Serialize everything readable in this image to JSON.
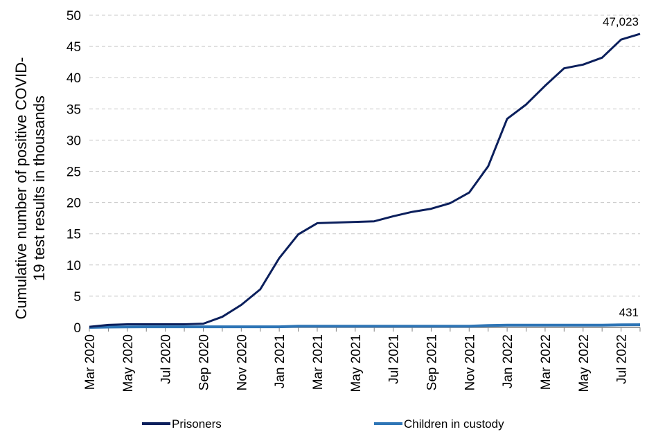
{
  "chart_data": {
    "type": "line",
    "ylabel_lines": [
      "Cumulative number of positive  COVID-",
      "19 test results in thousands"
    ],
    "ylim": [
      0,
      50
    ],
    "yticks": [
      0,
      5,
      10,
      15,
      20,
      25,
      30,
      35,
      40,
      45,
      50
    ],
    "grid": "horizontal dashed",
    "legend_position": "bottom",
    "x_tick_labels": [
      "Mar 2020",
      "May 2020",
      "Jul 2020",
      "Sep 2020",
      "Nov 2020",
      "Jan 2021",
      "Mar 2021",
      "May 2021",
      "Jul 2021",
      "Sep 2021",
      "Nov 2021",
      "Jan 2022",
      "Mar 2022",
      "May 2022",
      "Jul 2022"
    ],
    "x": [
      "Mar 2020",
      "Apr 2020",
      "May 2020",
      "Jun 2020",
      "Jul 2020",
      "Aug 2020",
      "Sep 2020",
      "Oct 2020",
      "Nov 2020",
      "Dec 2020",
      "Jan 2021",
      "Feb 2021",
      "Mar 2021",
      "Apr 2021",
      "May 2021",
      "Jun 2021",
      "Jul 2021",
      "Aug 2021",
      "Sep 2021",
      "Oct 2021",
      "Nov 2021",
      "Dec 2021",
      "Jan 2022",
      "Feb 2022",
      "Mar 2022",
      "Apr 2022",
      "May 2022",
      "Jun 2022",
      "Jul 2022",
      "Aug 2022"
    ],
    "series": [
      {
        "name": "Prisoners",
        "color": "#0b1f5c",
        "values": [
          0.1,
          0.4,
          0.5,
          0.5,
          0.5,
          0.5,
          0.6,
          1.7,
          3.6,
          6.1,
          11.1,
          14.9,
          16.7,
          16.8,
          16.9,
          17.0,
          17.8,
          18.5,
          19.0,
          19.9,
          21.6,
          25.8,
          33.4,
          35.7,
          38.7,
          41.5,
          42.1,
          43.2,
          46.1,
          47.023
        ],
        "end_label": "47,023"
      },
      {
        "name": "Children in custody",
        "color": "#2e75b6",
        "values": [
          0.0,
          0.05,
          0.08,
          0.1,
          0.1,
          0.1,
          0.1,
          0.1,
          0.1,
          0.1,
          0.1,
          0.2,
          0.2,
          0.2,
          0.2,
          0.2,
          0.2,
          0.2,
          0.2,
          0.2,
          0.2,
          0.3,
          0.35,
          0.35,
          0.35,
          0.35,
          0.35,
          0.36,
          0.42,
          0.431
        ],
        "end_label": "431"
      }
    ]
  }
}
